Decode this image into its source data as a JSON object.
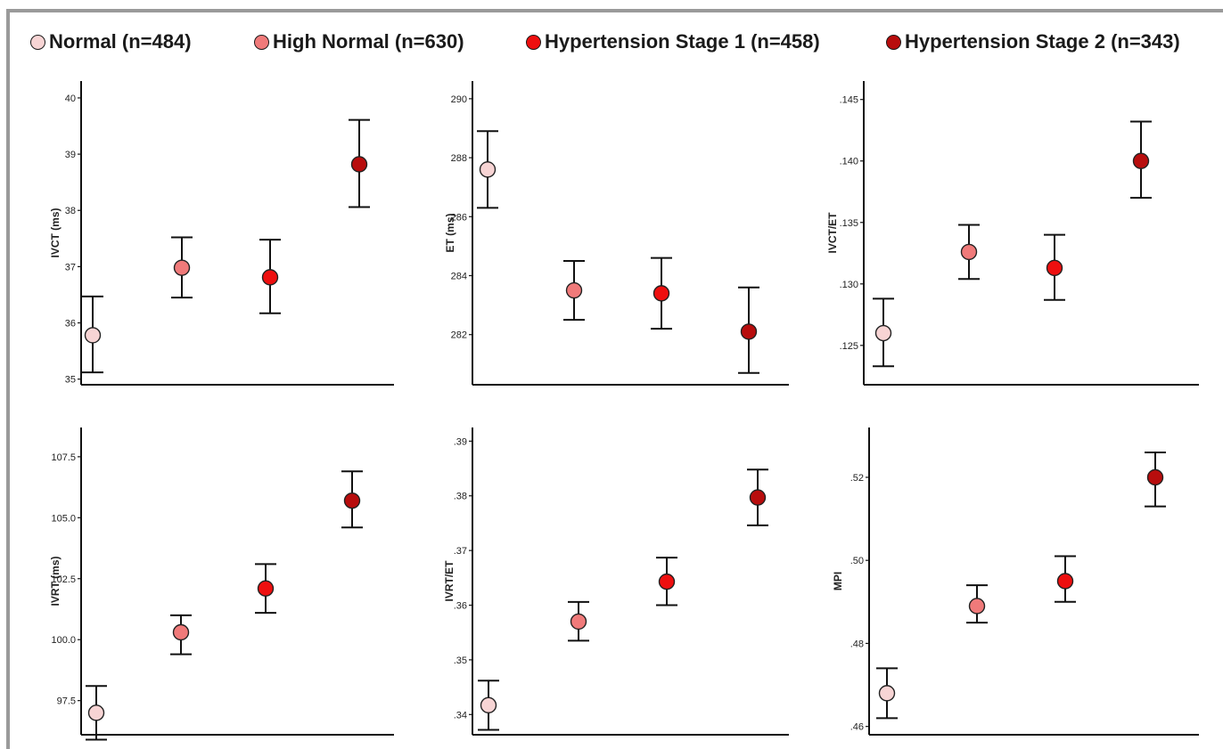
{
  "legend": [
    {
      "label": "Normal (n=484)",
      "color": "#f7d4d4"
    },
    {
      "label": "High Normal (n=630)",
      "color": "#f07a7a"
    },
    {
      "label": "Hypertension Stage 1 (n=458)",
      "color": "#ee0f0f"
    },
    {
      "label": "Hypertension Stage 2 (n=343)",
      "color": "#b80d0d"
    }
  ],
  "chart_data": [
    {
      "type": "scatter",
      "ylabel": "IVCT (ms)",
      "ylim": [
        34.9,
        40.3
      ],
      "yticks": [
        35,
        36,
        37,
        38,
        39,
        40
      ],
      "tick_labels": [
        "35",
        "36",
        "37",
        "38",
        "39",
        "40"
      ],
      "groups": [
        "Normal (n=484)",
        "High Normal (n=630)",
        "Hypertension Stage 1 (n=458)",
        "Hypertension Stage 2 (n=343)"
      ],
      "means": [
        35.78,
        36.98,
        36.81,
        38.82
      ],
      "lower": [
        35.12,
        36.45,
        36.17,
        38.06
      ],
      "upper": [
        36.47,
        37.52,
        37.48,
        39.61
      ]
    },
    {
      "type": "scatter",
      "ylabel": "ET (ms)",
      "ylim": [
        280.3,
        290.6
      ],
      "yticks": [
        282,
        284,
        286,
        288,
        290
      ],
      "tick_labels": [
        "282",
        "284",
        "286",
        "288",
        "290"
      ],
      "groups": [
        "Normal (n=484)",
        "High Normal (n=630)",
        "Hypertension Stage 1 (n=458)",
        "Hypertension Stage 2 (n=343)"
      ],
      "means": [
        287.6,
        283.5,
        283.4,
        282.1
      ],
      "lower": [
        286.3,
        282.5,
        282.2,
        280.7
      ],
      "upper": [
        288.9,
        284.5,
        284.6,
        283.6
      ]
    },
    {
      "type": "scatter",
      "ylabel": "IVCT/ET",
      "ylim": [
        0.1218,
        0.1465
      ],
      "yticks": [
        0.125,
        0.13,
        0.135,
        0.14,
        0.145
      ],
      "tick_labels": [
        ".125",
        ".130",
        ".135",
        ".140",
        ".145"
      ],
      "groups": [
        "Normal (n=484)",
        "High Normal (n=630)",
        "Hypertension Stage 1 (n=458)",
        "Hypertension Stage 2 (n=343)"
      ],
      "means": [
        0.126,
        0.1326,
        0.1313,
        0.14
      ],
      "lower": [
        0.1233,
        0.1304,
        0.1287,
        0.137
      ],
      "upper": [
        0.1288,
        0.1348,
        0.134,
        0.1432
      ]
    },
    {
      "type": "scatter",
      "ylabel": "IVRT (ms)",
      "ylim": [
        96.1,
        108.7
      ],
      "yticks": [
        97.5,
        100.0,
        102.5,
        105.0,
        107.5
      ],
      "tick_labels": [
        "97.5",
        "100.0",
        "102.5",
        "105.0",
        "107.5"
      ],
      "groups": [
        "Normal (n=484)",
        "High Normal (n=630)",
        "Hypertension Stage 1 (n=458)",
        "Hypertension Stage 2 (n=343)"
      ],
      "means": [
        97.0,
        100.3,
        102.1,
        105.7
      ],
      "lower": [
        95.9,
        99.4,
        101.1,
        104.6
      ],
      "upper": [
        98.1,
        101.0,
        103.1,
        106.9
      ]
    },
    {
      "type": "scatter",
      "ylabel": "IVRT/ET",
      "ylim": [
        0.3363,
        0.3925
      ],
      "yticks": [
        0.34,
        0.35,
        0.36,
        0.37,
        0.38,
        0.39
      ],
      "tick_labels": [
        ".34",
        ".35",
        ".36",
        ".37",
        ".38",
        ".39"
      ],
      "groups": [
        "Normal (n=484)",
        "High Normal (n=630)",
        "Hypertension Stage 1 (n=458)",
        "Hypertension Stage 2 (n=343)"
      ],
      "means": [
        0.3417,
        0.357,
        0.3643,
        0.3797
      ],
      "lower": [
        0.3372,
        0.3535,
        0.36,
        0.3746
      ],
      "upper": [
        0.3462,
        0.3606,
        0.3687,
        0.3848
      ]
    },
    {
      "type": "scatter",
      "ylabel": "MPI",
      "ylim": [
        0.458,
        0.532
      ],
      "yticks": [
        0.46,
        0.48,
        0.5,
        0.52
      ],
      "tick_labels": [
        ".46",
        ".48",
        ".50",
        ".52"
      ],
      "groups": [
        "Normal (n=484)",
        "High Normal (n=630)",
        "Hypertension Stage 1 (n=458)",
        "Hypertension Stage 2 (n=343)"
      ],
      "means": [
        0.468,
        0.489,
        0.495,
        0.52
      ],
      "lower": [
        0.462,
        0.485,
        0.49,
        0.513
      ],
      "upper": [
        0.474,
        0.494,
        0.501,
        0.526
      ]
    }
  ]
}
